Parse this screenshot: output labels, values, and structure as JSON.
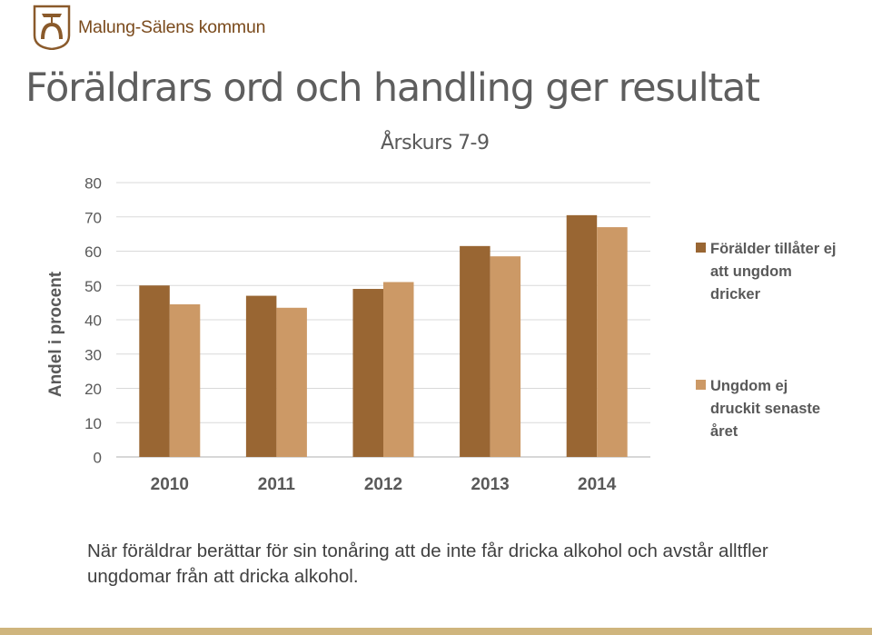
{
  "brand": {
    "name": "Malung-Sälens kommun",
    "logo_icon": "horseshoe-logo-icon"
  },
  "title": "Föräldrars ord och handling ger resultat",
  "colors": {
    "series1": "#996633",
    "series2": "#cc9966",
    "bottom_bar": "#cfb57d"
  },
  "caption": "När föräldrar berättar för sin tonåring att de inte får dricka alkohol och avstår alltfler ungdomar från att dricka alkohol.",
  "chart_data": {
    "type": "bar",
    "title": "Årskurs 7-9",
    "ylabel": "Andel i procent",
    "xlabel": "",
    "ylim": [
      0,
      80
    ],
    "yticks": [
      0,
      10,
      20,
      30,
      40,
      50,
      60,
      70,
      80
    ],
    "grid": true,
    "legend_position": "right",
    "categories": [
      "2010",
      "2011",
      "2012",
      "2013",
      "2014"
    ],
    "series": [
      {
        "name": "Förälder tillåter ej att ungdom dricker",
        "color": "#996633",
        "values": [
          50,
          47,
          49,
          61.5,
          70.5
        ]
      },
      {
        "name": "Ungdom ej druckit senaste året",
        "color": "#cc9966",
        "values": [
          44.5,
          43.5,
          51,
          58.5,
          67
        ]
      }
    ]
  }
}
